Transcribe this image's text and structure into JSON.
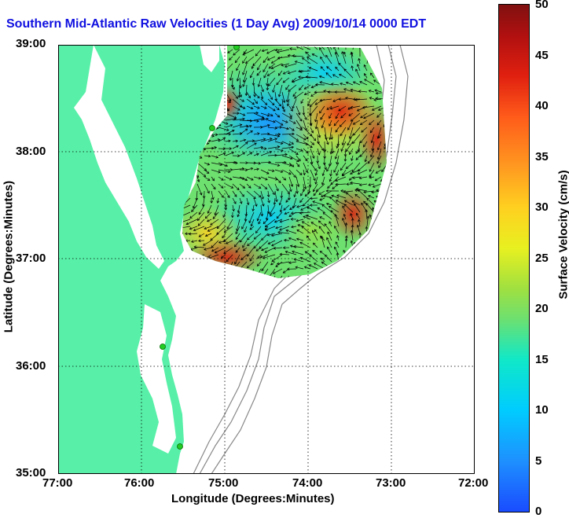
{
  "title": "Southern Mid-Atlantic Raw Velocities (1 Day Avg) 2009/10/14 0000 EDT",
  "axes": {
    "xlabel": "Longitude (Degrees:Minutes)",
    "ylabel": "Latitude (Degrees:Minutes)",
    "xticks": [
      "77:00",
      "76:00",
      "75:00",
      "74:00",
      "73:00",
      "72:00"
    ],
    "yticks": [
      "39:00",
      "38:00",
      "37:00",
      "36:00",
      "35:00"
    ]
  },
  "colorbar": {
    "label": "Surface Velocity (cm/s)",
    "ticks": [
      "50",
      "45",
      "40",
      "35",
      "30",
      "25",
      "20",
      "15",
      "10",
      "5",
      "0"
    ],
    "min": 0,
    "max": 50
  },
  "colors": {
    "land": "#58f0a8",
    "title": "#1010e0",
    "station": "#22cc22"
  },
  "stations": [
    "radar-station",
    "radar-station",
    "radar-station",
    "radar-station",
    "radar-station"
  ]
}
